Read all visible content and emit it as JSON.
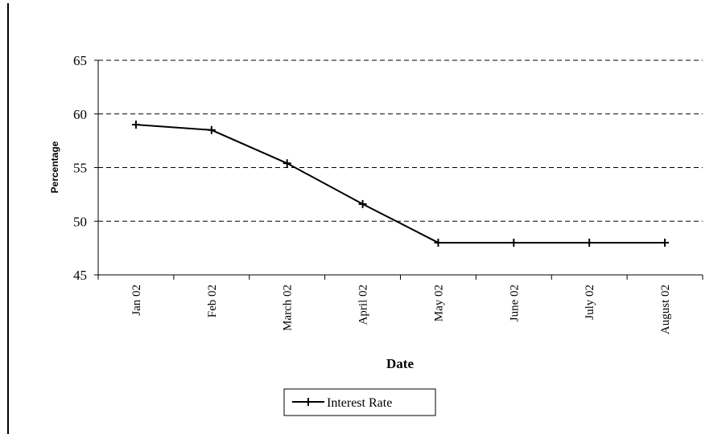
{
  "chart_data": {
    "type": "line",
    "categories": [
      "Jan 02",
      "Feb 02",
      "March 02",
      "April 02",
      "May 02",
      "June 02",
      "July 02",
      "August 02"
    ],
    "series": [
      {
        "name": "Interest Rate",
        "values": [
          59.0,
          58.5,
          55.4,
          51.6,
          48.0,
          48.0,
          48.0,
          48.0
        ]
      }
    ],
    "xlabel": "Date",
    "ylabel": "Percentage",
    "ylim": [
      45,
      65
    ],
    "yticks": [
      45,
      50,
      55,
      60,
      65
    ],
    "grid": "horizontal dashed",
    "legend": "bottom-center",
    "line_color": "#000000",
    "marker": "plus"
  }
}
